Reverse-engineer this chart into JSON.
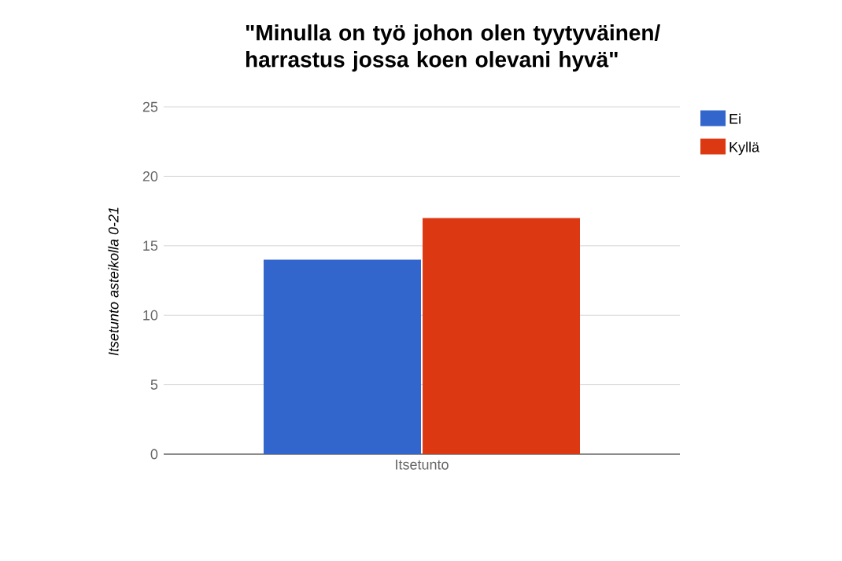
{
  "chart_data": {
    "type": "bar",
    "title": "\"Minulla on työ johon olen tyytyväinen/ harrastus jossa koen olevani hyvä\"",
    "ylabel": "Itsetunto asteikolla 0-21",
    "categories": [
      "Itsetunto"
    ],
    "series": [
      {
        "name": "Ei",
        "color": "#3366cc",
        "values": [
          14
        ]
      },
      {
        "name": "Kyllä",
        "color": "#dc3912",
        "values": [
          17
        ]
      }
    ],
    "ylim": [
      0,
      25
    ],
    "yticks": [
      0,
      5,
      10,
      15,
      20,
      25
    ],
    "grid": "y",
    "legend": "top right"
  }
}
